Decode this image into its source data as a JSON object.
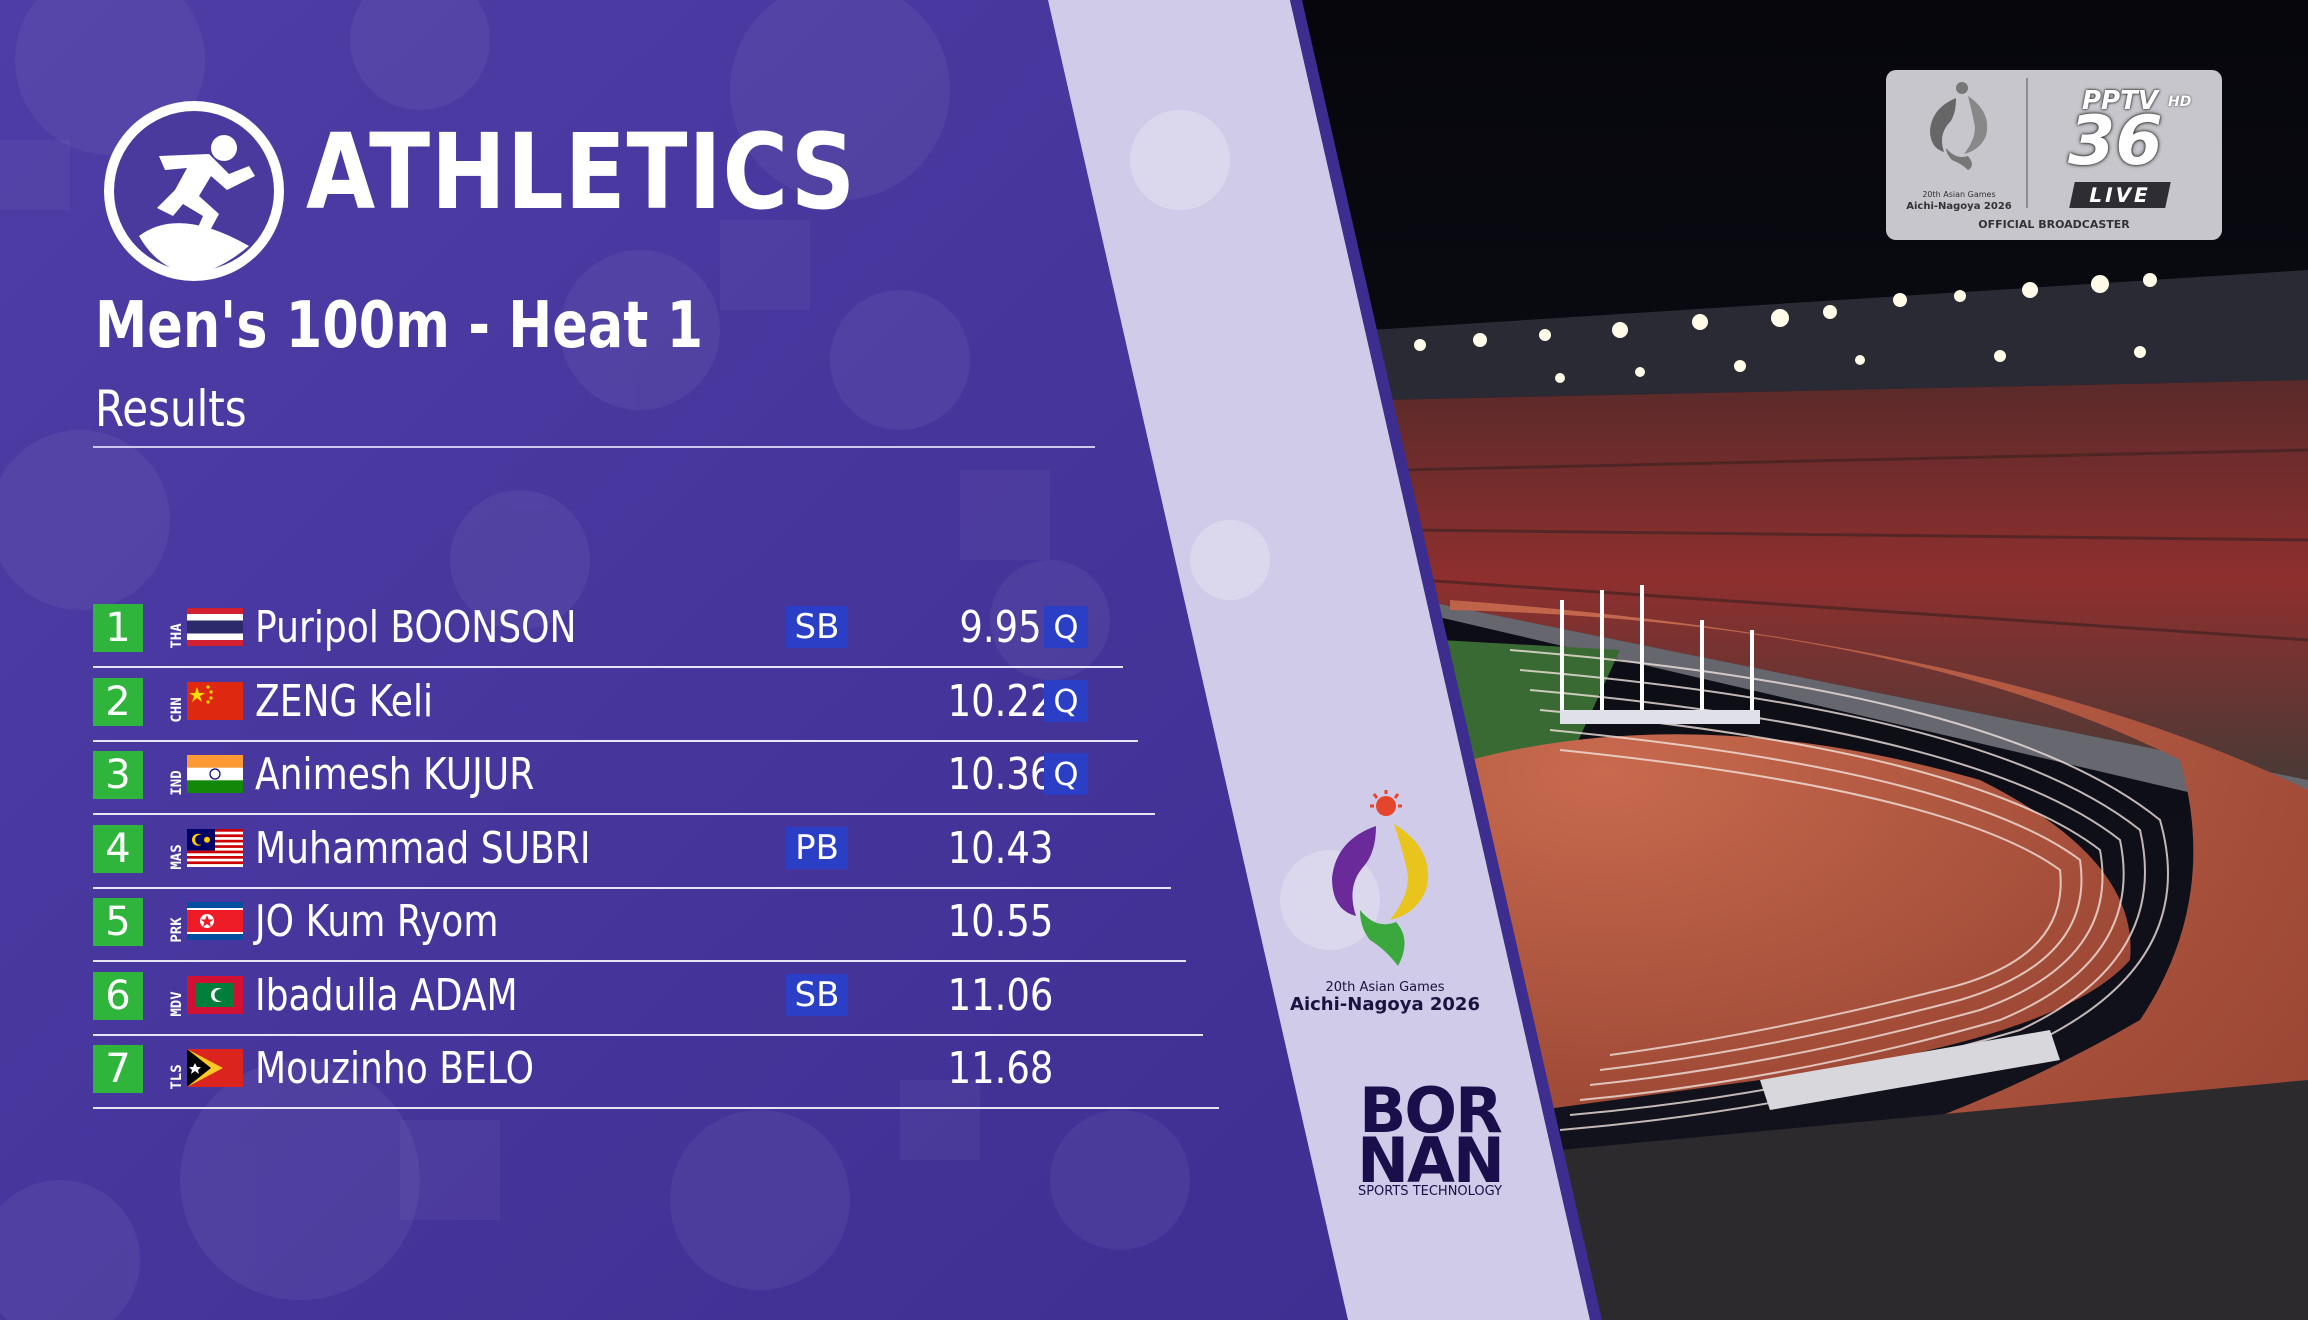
{
  "header": {
    "sport": "ATHLETICS",
    "event": "Men's 100m - Heat 1",
    "subtitle": "Results"
  },
  "results": [
    {
      "rank": "1",
      "country_code": "THA",
      "flag": "thailand-flag",
      "athlete": "Puripol BOONSON",
      "record": "SB",
      "mark": "9.95",
      "qualification": "Q"
    },
    {
      "rank": "2",
      "country_code": "CHN",
      "flag": "china-flag",
      "athlete": "ZENG Keli",
      "record": "",
      "mark": "10.22",
      "qualification": "Q"
    },
    {
      "rank": "3",
      "country_code": "IND",
      "flag": "india-flag",
      "athlete": "Animesh KUJUR",
      "record": "",
      "mark": "10.36",
      "qualification": "Q"
    },
    {
      "rank": "4",
      "country_code": "MAS",
      "flag": "malaysia-flag",
      "athlete": "Muhammad SUBRI",
      "record": "PB",
      "mark": "10.43",
      "qualification": ""
    },
    {
      "rank": "5",
      "country_code": "PRK",
      "flag": "north-korea-flag",
      "athlete": "JO Kum Ryom",
      "record": "",
      "mark": "10.55",
      "qualification": ""
    },
    {
      "rank": "6",
      "country_code": "MDV",
      "flag": "maldives-flag",
      "athlete": "Ibadulla ADAM",
      "record": "SB",
      "mark": "11.06",
      "qualification": ""
    },
    {
      "rank": "7",
      "country_code": "TLS",
      "flag": "timor-leste-flag",
      "athlete": "Mouzinho BELO",
      "record": "",
      "mark": "11.68",
      "qualification": ""
    }
  ],
  "games_logo": {
    "line1": "20th Asian Games",
    "line2": "Aichi-Nagoya 2026"
  },
  "sponsor": {
    "line1": "BOR",
    "line2": "NAN",
    "tagline": "SPORTS TECHNOLOGY"
  },
  "broadcaster": {
    "games_line1": "20th Asian Games",
    "games_line2": "Aichi-Nagoya 2026",
    "brand": "PPTV",
    "hd": "HD",
    "channel": "36",
    "live": "LIVE",
    "footer": "OFFICIAL BROADCASTER"
  },
  "colors": {
    "panel_purple": "#4a3a9e",
    "rank_green": "#2fb53c",
    "badge_blue": "#2a3fc6",
    "diagonal_band": "#cfcbe8"
  }
}
